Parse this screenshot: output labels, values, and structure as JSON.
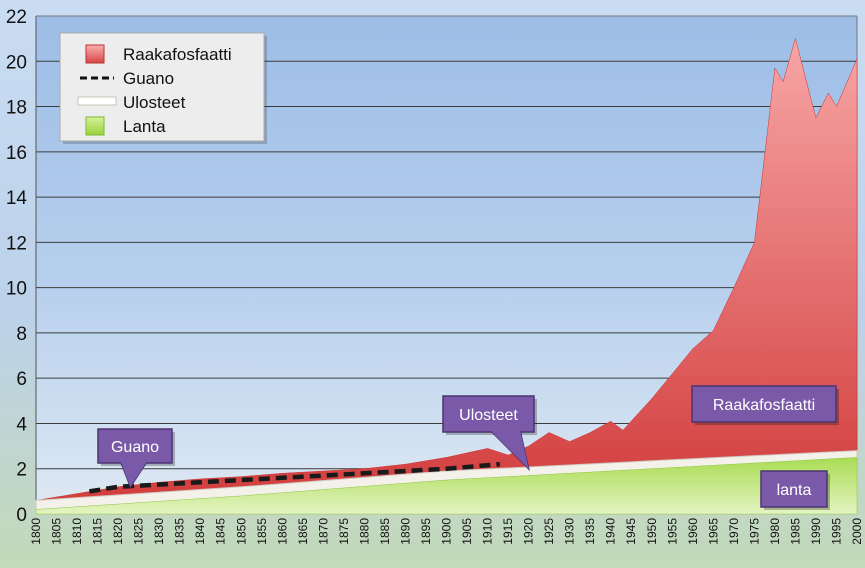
{
  "chart_data": {
    "type": "area",
    "x_ticks": [
      "1800",
      "1805",
      "1810",
      "1815",
      "1820",
      "1825",
      "1830",
      "1835",
      "1840",
      "1845",
      "1850",
      "1855",
      "1860",
      "1865",
      "1870",
      "1875",
      "1880",
      "1885",
      "1890",
      "1895",
      "1900",
      "1905",
      "1910",
      "1915",
      "1920",
      "1925",
      "1930",
      "1935",
      "1940",
      "1945",
      "1950",
      "1955",
      "1960",
      "1965",
      "1970",
      "1975",
      "1980",
      "1985",
      "1990",
      "1995",
      "2000"
    ],
    "y_ticks": [
      "0",
      "2",
      "4",
      "6",
      "8",
      "10",
      "12",
      "14",
      "16",
      "18",
      "20",
      "22"
    ],
    "xlim": [
      1800,
      2000
    ],
    "ylim": [
      0,
      22
    ],
    "grid": "horizontal",
    "legend_position": "top-left",
    "legend": [
      {
        "label": "Raakafosfaatti",
        "marker": "red-square"
      },
      {
        "label": "Guano",
        "marker": "dashed-line"
      },
      {
        "label": "Ulosteet",
        "marker": "white-band"
      },
      {
        "label": "Lanta",
        "marker": "green-square"
      }
    ],
    "series": [
      {
        "name": "Lanta",
        "kind": "area",
        "x": [
          1800,
          1850,
          1900,
          1950,
          2000
        ],
        "y": [
          0.2,
          0.8,
          1.5,
          2.0,
          2.5
        ]
      },
      {
        "name": "Ulosteet",
        "kind": "band",
        "x": [
          1800,
          1850,
          1900,
          1950,
          2000
        ],
        "y": [
          0.6,
          1.2,
          1.9,
          2.35,
          2.8
        ]
      },
      {
        "name": "Guano",
        "kind": "dashed-line",
        "x": [
          1813,
          1820,
          1840,
          1860,
          1880,
          1900,
          1913
        ],
        "y": [
          1.0,
          1.2,
          1.4,
          1.6,
          1.8,
          2.0,
          2.2
        ]
      },
      {
        "name": "Raakafosfaatti",
        "kind": "area",
        "x": [
          1800,
          1810,
          1820,
          1830,
          1840,
          1850,
          1860,
          1870,
          1880,
          1890,
          1900,
          1905,
          1910,
          1915,
          1920,
          1925,
          1930,
          1935,
          1940,
          1943,
          1950,
          1955,
          1960,
          1965,
          1970,
          1975,
          1980,
          1982,
          1985,
          1990,
          1993,
          1995,
          2000
        ],
        "y": [
          0.6,
          0.9,
          1.2,
          1.4,
          1.55,
          1.65,
          1.8,
          1.9,
          2.0,
          2.2,
          2.5,
          2.7,
          2.9,
          2.6,
          3.0,
          3.6,
          3.2,
          3.6,
          4.1,
          3.7,
          5.1,
          6.2,
          7.3,
          8.1,
          10.0,
          12.0,
          19.7,
          19.1,
          21.0,
          17.5,
          18.6,
          18.0,
          20.1
        ]
      }
    ],
    "annotations": [
      {
        "label": "Guano",
        "target_x": 1823,
        "target_y": 1.2
      },
      {
        "label": "Ulosteet",
        "target_x": 1920,
        "target_y": 2.0
      },
      {
        "label": "Raakafosfaatti"
      },
      {
        "label": "lanta"
      }
    ]
  },
  "colors": {
    "raakafosfaatti_top": "#f7a5a5",
    "raakafosfaatti_bottom": "#d13a3a",
    "lanta_top": "#a9dc53",
    "lanta_bottom": "#e8f6c6",
    "ulosteet": "#f4f1ea",
    "callout_fill": "#7a5aa8",
    "callout_border": "#4a3470"
  }
}
